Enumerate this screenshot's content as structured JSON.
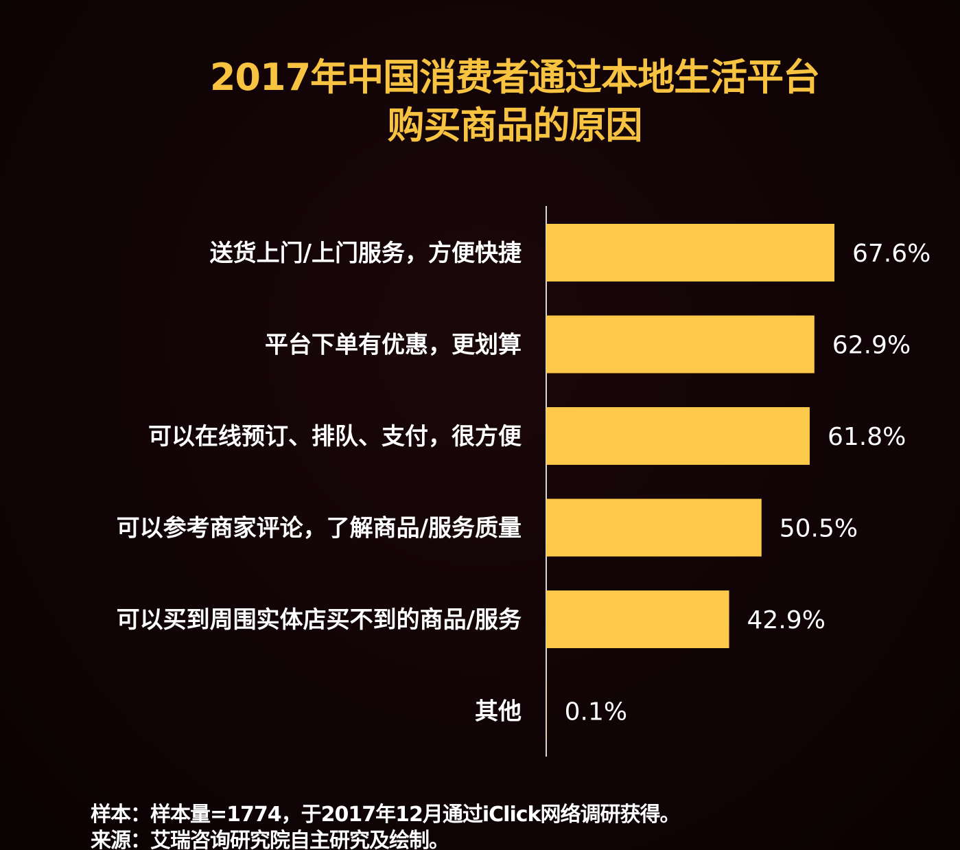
{
  "chart_data": {
    "type": "bar",
    "orientation": "horizontal",
    "title": "2017年中国消费者通过本地生活平台购买商品的原因",
    "title_lines": [
      "2017年中国消费者通过本地生活平台",
      "购买商品的原因"
    ],
    "categories": [
      "送货上门/上门服务，方便快捷",
      "平台下单有优惠，更划算",
      "可以在线预订、排队、支付，很方便",
      "可以参考商家评论，了解商品/服务质量",
      "可以买到周围实体店买不到的商品/服务",
      "其他"
    ],
    "values": [
      67.6,
      62.9,
      61.8,
      50.5,
      42.9,
      0.1
    ],
    "value_labels": [
      "67.6%",
      "62.9%",
      "61.8%",
      "50.5%",
      "42.9%",
      "0.1%"
    ],
    "xlim": [
      0,
      100
    ],
    "grid": false,
    "legend": "none",
    "bar_color": "#fdc94a",
    "title_color": "#f7c341",
    "background_color": "#110406"
  },
  "footer": {
    "sample": "样本：样本量=1774，于2017年12月通过iClick网络调研获得。",
    "source": "来源：艾瑞咨询研究院自主研究及绘制。"
  }
}
